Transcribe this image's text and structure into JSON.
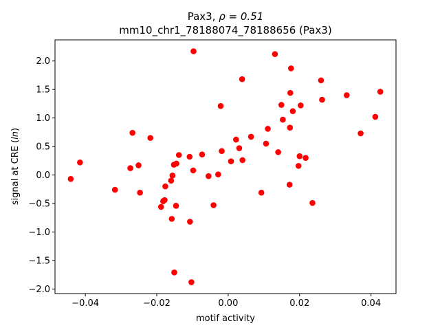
{
  "chart_data": {
    "type": "scatter",
    "title_line1_prefix": "Pax3, ",
    "title_line1_rho": "ρ = 0.51",
    "title_line2": "mm10_chr1_78188074_78188656 (Pax3)",
    "xlabel": "motif activity",
    "ylabel_prefix": "signal at CRE (",
    "ylabel_math": "ln",
    "ylabel_suffix": ")",
    "xlim": [
      -0.0485,
      0.047
    ],
    "ylim": [
      -2.08,
      2.37
    ],
    "x_ticks": [
      -0.04,
      -0.02,
      0.0,
      0.02,
      0.04
    ],
    "x_tick_labels": [
      "−0.04",
      "−0.02",
      "0.00",
      "0.02",
      "0.04"
    ],
    "y_ticks": [
      -2.0,
      -1.5,
      -1.0,
      -0.5,
      0.0,
      0.5,
      1.0,
      1.5,
      2.0
    ],
    "y_tick_labels": [
      "−2.0",
      "−1.5",
      "−1.0",
      "−0.5",
      "0.0",
      "0.5",
      "1.0",
      "1.5",
      "2.0"
    ],
    "grid": false,
    "marker_color": "#ff0000",
    "points": [
      {
        "x": -0.0441,
        "y": -0.07
      },
      {
        "x": -0.0415,
        "y": 0.22
      },
      {
        "x": -0.0317,
        "y": -0.26
      },
      {
        "x": -0.0274,
        "y": 0.12
      },
      {
        "x": -0.0268,
        "y": 0.74
      },
      {
        "x": -0.0251,
        "y": 0.17
      },
      {
        "x": -0.0247,
        "y": -0.31
      },
      {
        "x": -0.0218,
        "y": 0.65
      },
      {
        "x": -0.0188,
        "y": -0.56
      },
      {
        "x": -0.0182,
        "y": -0.46
      },
      {
        "x": -0.0178,
        "y": -0.44
      },
      {
        "x": -0.0176,
        "y": -0.2
      },
      {
        "x": -0.016,
        "y": -0.1
      },
      {
        "x": -0.0158,
        "y": -0.77
      },
      {
        "x": -0.0156,
        "y": -0.01
      },
      {
        "x": -0.0152,
        "y": 0.18
      },
      {
        "x": -0.0151,
        "y": -1.71
      },
      {
        "x": -0.0145,
        "y": 0.2
      },
      {
        "x": -0.0146,
        "y": -0.54
      },
      {
        "x": -0.0138,
        "y": 0.35
      },
      {
        "x": -0.0108,
        "y": 0.32
      },
      {
        "x": -0.0107,
        "y": -0.82
      },
      {
        "x": -0.0103,
        "y": -1.88
      },
      {
        "x": -0.0098,
        "y": 0.08
      },
      {
        "x": -0.0097,
        "y": 2.17
      },
      {
        "x": -0.0073,
        "y": 0.36
      },
      {
        "x": -0.0055,
        "y": -0.02
      },
      {
        "x": -0.0041,
        "y": -0.53
      },
      {
        "x": -0.0028,
        "y": 0.01
      },
      {
        "x": -0.0021,
        "y": 1.21
      },
      {
        "x": -0.0018,
        "y": 0.42
      },
      {
        "x": 0.0008,
        "y": 0.24
      },
      {
        "x": 0.0022,
        "y": 0.62
      },
      {
        "x": 0.0031,
        "y": 0.47
      },
      {
        "x": 0.0039,
        "y": 1.68
      },
      {
        "x": 0.004,
        "y": 0.26
      },
      {
        "x": 0.0064,
        "y": 0.67
      },
      {
        "x": 0.0093,
        "y": -0.31
      },
      {
        "x": 0.0106,
        "y": 0.55
      },
      {
        "x": 0.0111,
        "y": 0.81
      },
      {
        "x": 0.0131,
        "y": 2.12
      },
      {
        "x": 0.014,
        "y": 0.4
      },
      {
        "x": 0.0149,
        "y": 1.23
      },
      {
        "x": 0.0153,
        "y": 0.97
      },
      {
        "x": 0.0172,
        "y": -0.17
      },
      {
        "x": 0.0173,
        "y": 0.83
      },
      {
        "x": 0.0174,
        "y": 1.44
      },
      {
        "x": 0.0176,
        "y": 1.87
      },
      {
        "x": 0.0181,
        "y": 1.12
      },
      {
        "x": 0.0197,
        "y": 0.16
      },
      {
        "x": 0.02,
        "y": 0.33
      },
      {
        "x": 0.0203,
        "y": 1.22
      },
      {
        "x": 0.0217,
        "y": 0.3
      },
      {
        "x": 0.0236,
        "y": -0.49
      },
      {
        "x": 0.026,
        "y": 1.66
      },
      {
        "x": 0.0263,
        "y": 1.32
      },
      {
        "x": 0.0332,
        "y": 1.4
      },
      {
        "x": 0.0371,
        "y": 0.73
      },
      {
        "x": 0.0412,
        "y": 1.02
      },
      {
        "x": 0.0426,
        "y": 1.46
      }
    ]
  }
}
